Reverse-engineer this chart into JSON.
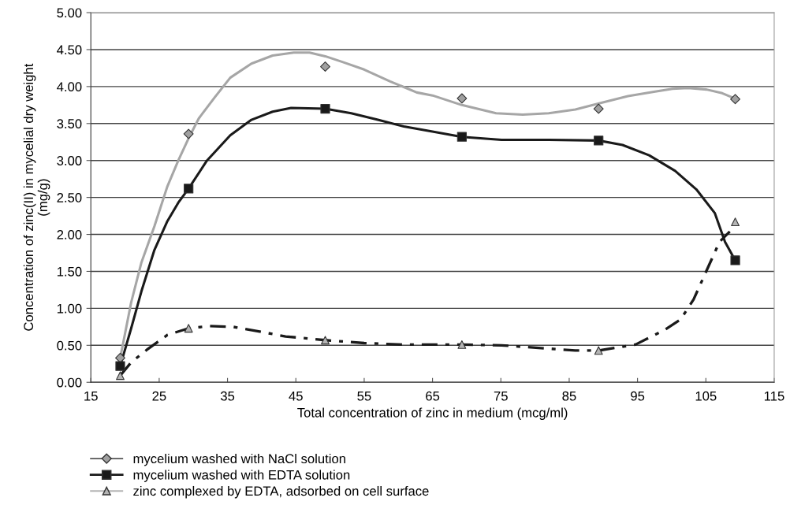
{
  "chart_data": {
    "type": "scatter",
    "xlabel": "Total concentration of zinc in medium (mcg/ml)",
    "ylabel": "Concentration of zinc(II) in mycelial dry weight\n(mg/g)",
    "x": [
      19.3,
      29.3,
      49.3,
      69.3,
      89.3,
      109.3
    ],
    "xlim": [
      15,
      115
    ],
    "xticks": [
      15,
      25,
      35,
      45,
      55,
      65,
      75,
      85,
      95,
      105,
      115
    ],
    "ylim": [
      0,
      5
    ],
    "yticks": [
      {
        "value": 0,
        "label": "0.00"
      },
      {
        "value": 0.5,
        "label": "0.50"
      },
      {
        "value": 1,
        "label": "1.00"
      },
      {
        "value": 1.5,
        "label": "1.50"
      },
      {
        "value": 2,
        "label": "2.00"
      },
      {
        "value": 2.5,
        "label": "2.50"
      },
      {
        "value": 3,
        "label": "3.00"
      },
      {
        "value": 3.5,
        "label": "3.50"
      },
      {
        "value": 4,
        "label": "4.00"
      },
      {
        "value": 4.5,
        "label": "4.50"
      },
      {
        "value": 5,
        "label": "5.00"
      }
    ],
    "grid": "y",
    "legend": "bottom",
    "series": [
      {
        "name": "mycelium washed with NaCl solution",
        "marker": "diamond",
        "color": "#a0a0a0",
        "values": [
          0.33,
          3.36,
          4.27,
          3.84,
          3.7,
          3.83
        ]
      },
      {
        "name": "mycelium washed with EDTA solution",
        "marker": "square",
        "color": "#1a1a1a",
        "values": [
          0.22,
          2.62,
          3.7,
          3.32,
          3.27,
          1.65
        ]
      },
      {
        "name": "zinc complexed by EDTA, adsorbed on cell surface",
        "marker": "triangle",
        "color": "#b4b4b4",
        "values": [
          0.09,
          0.73,
          0.57,
          0.51,
          0.43,
          2.17
        ]
      },
      {
        "type": "line",
        "color": "#a6a6a6",
        "line_style": "solid",
        "x": [
          19.3,
          20.9,
          22.4,
          24.3,
          26.2,
          27.8,
          29.3,
          30.8,
          33.1,
          35.4,
          38.5,
          41.6,
          44.7,
          47.0,
          49.3,
          51.9,
          55.0,
          58.8,
          62.7,
          65.0,
          69.3,
          74.3,
          78.2,
          82.0,
          85.9,
          89.7,
          93.6,
          97.4,
          100.1,
          102.4,
          105.1,
          107.4,
          109.2
        ],
        "values": [
          0.33,
          1.08,
          1.62,
          2.11,
          2.65,
          3.0,
          3.3,
          3.57,
          3.85,
          4.12,
          4.31,
          4.42,
          4.46,
          4.46,
          4.41,
          4.33,
          4.23,
          4.07,
          3.92,
          3.88,
          3.75,
          3.64,
          3.62,
          3.64,
          3.69,
          3.78,
          3.87,
          3.93,
          3.97,
          3.98,
          3.96,
          3.91,
          3.84
        ]
      },
      {
        "type": "line",
        "color": "#1a1a1a",
        "line_style": "solid",
        "x": [
          19.3,
          20.9,
          22.4,
          24.3,
          26.2,
          27.8,
          29.3,
          32.0,
          35.4,
          38.5,
          41.6,
          44.3,
          49.3,
          53.1,
          57.0,
          60.8,
          65.0,
          69.3,
          75.1,
          82.0,
          89.3,
          92.8,
          96.7,
          100.5,
          103.6,
          106.3,
          107.8,
          109.3
        ],
        "values": [
          0.22,
          0.73,
          1.23,
          1.79,
          2.18,
          2.43,
          2.62,
          3.0,
          3.34,
          3.55,
          3.66,
          3.71,
          3.7,
          3.64,
          3.55,
          3.46,
          3.39,
          3.32,
          3.28,
          3.28,
          3.27,
          3.21,
          3.07,
          2.86,
          2.61,
          2.29,
          1.9,
          1.65
        ]
      },
      {
        "type": "line",
        "color": "#1a1a1a",
        "line_style": "dashed",
        "x": [
          19.3,
          20.9,
          23.2,
          26.2,
          29.3,
          32.4,
          35.8,
          38.9,
          43.5,
          49.3,
          55.0,
          60.8,
          65.0,
          69.3,
          75.1,
          81.3,
          85.9,
          89.3,
          94.7,
          99.0,
          101.3,
          103.2,
          105.1,
          107.0,
          108.5
        ],
        "values": [
          0.09,
          0.27,
          0.44,
          0.64,
          0.73,
          0.76,
          0.75,
          0.7,
          0.62,
          0.57,
          0.53,
          0.51,
          0.51,
          0.51,
          0.5,
          0.46,
          0.43,
          0.43,
          0.51,
          0.71,
          0.85,
          1.12,
          1.51,
          1.9,
          2.04
        ]
      }
    ]
  }
}
